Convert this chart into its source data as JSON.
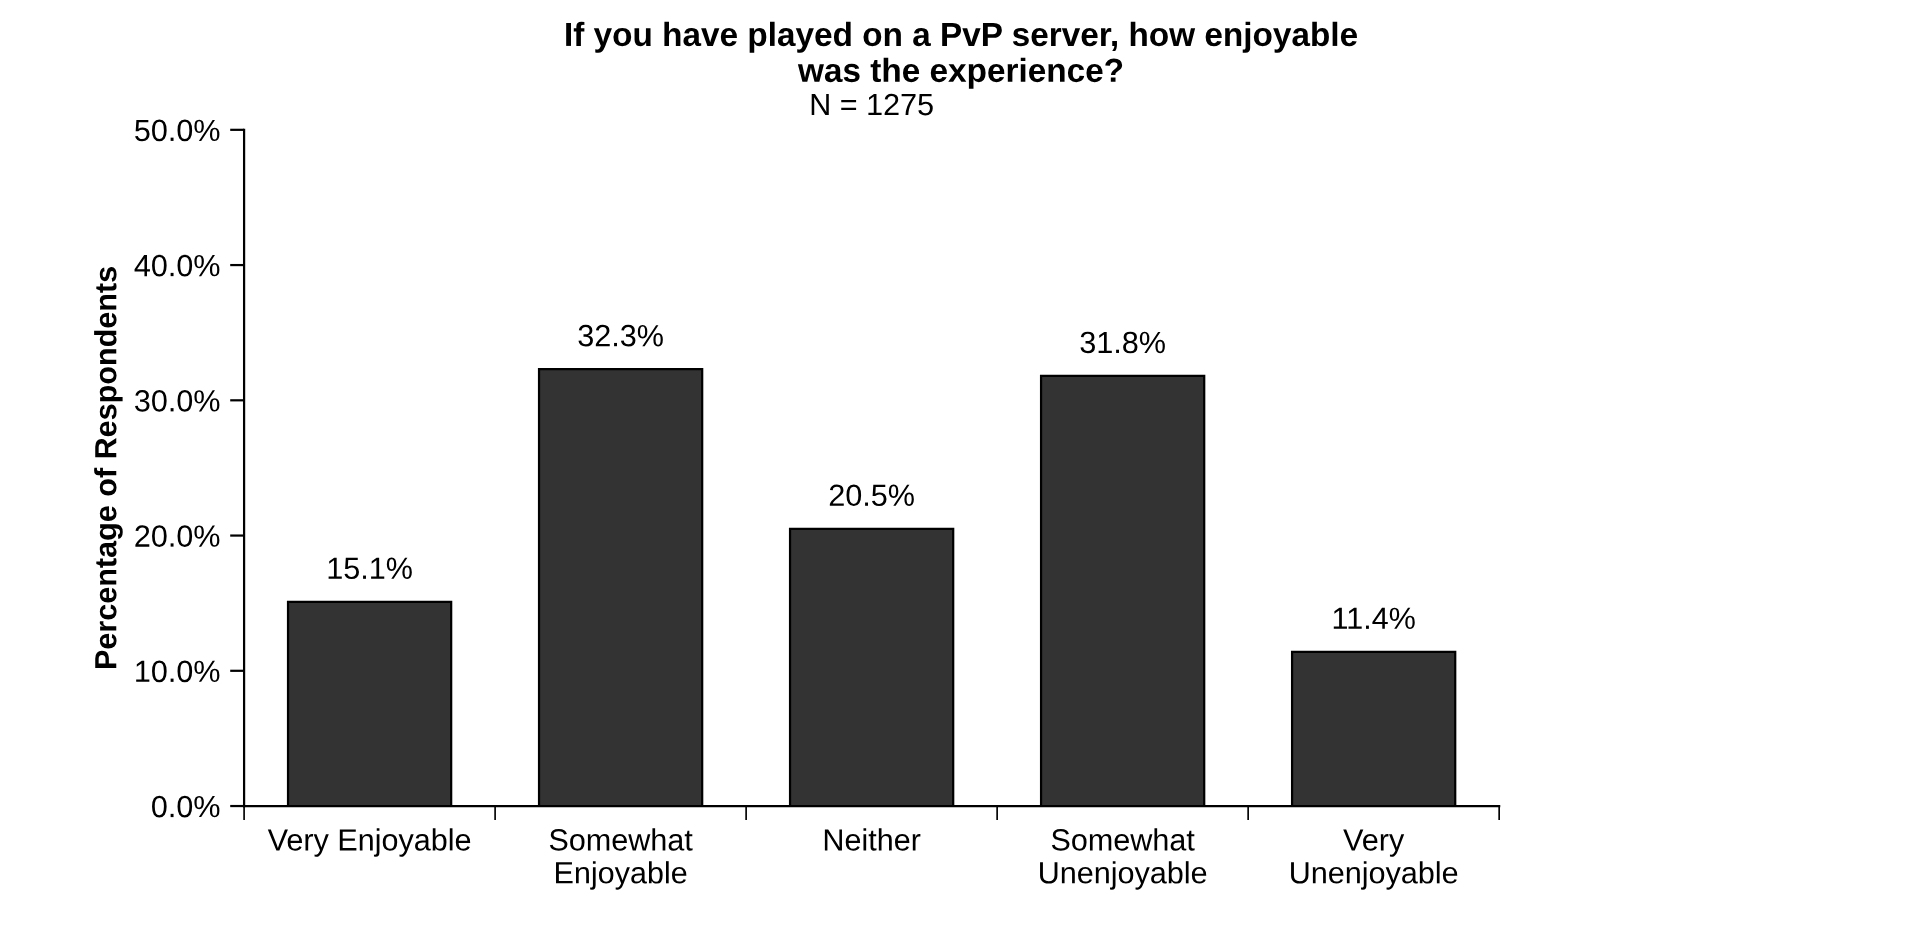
{
  "chart_data": {
    "type": "bar",
    "title": "If you have played on a PvP server, how enjoyable\nwas the experience?",
    "subtitle": "N = 1275",
    "ylabel": "Percentage of Respondents",
    "categories": [
      "Very Enjoyable",
      "Somewhat\nEnjoyable",
      "Neither",
      "Somewhat\nUnenjoyable",
      "Very\nUnenjoyable"
    ],
    "values": [
      15.1,
      32.3,
      20.5,
      31.8,
      11.4
    ],
    "color": "#333333",
    "value_labels": [
      "15.1%",
      "32.3%",
      "20.5%",
      "31.8%",
      "11.4%"
    ],
    "ylim": [
      0,
      50
    ],
    "yticks": [
      {
        "value": 0,
        "label": "0.0%"
      },
      {
        "value": 10,
        "label": "10.0%"
      },
      {
        "value": 20,
        "label": "20.0%"
      },
      {
        "value": 30,
        "label": "30.0%"
      },
      {
        "value": 40,
        "label": "40.0%"
      },
      {
        "value": 50,
        "label": "50.0%"
      }
    ],
    "grid": false
  }
}
